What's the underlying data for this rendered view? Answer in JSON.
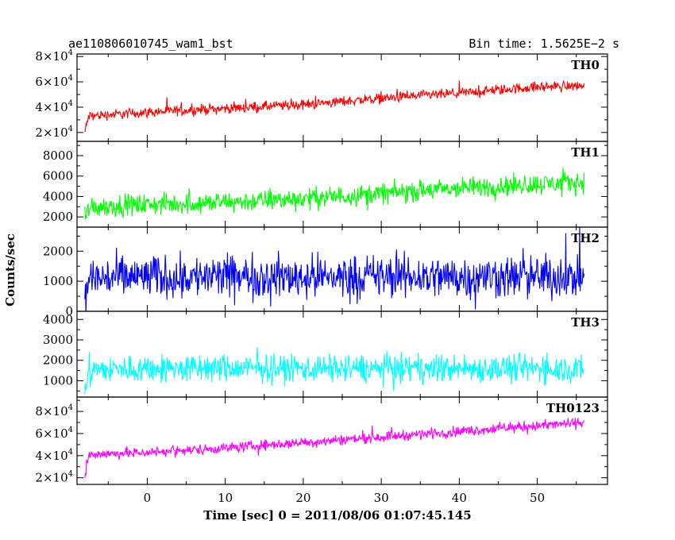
{
  "header": {
    "left_title": "ae110806010745_wam1_bst",
    "right_title": "Bin time: 1.5625E−2 s"
  },
  "axes": {
    "xlabel": "Time [sec] 0 = 2011/08/06 01:07:45.145",
    "ylabel": "Counts/sec"
  },
  "chart_data": {
    "type": "line",
    "xlim": [
      -9,
      59
    ],
    "x_ticks": [
      0,
      10,
      20,
      30,
      40,
      50
    ],
    "x_tick_labels": [
      "0",
      "10",
      "20",
      "30",
      "40",
      "50"
    ],
    "data_x_range": [
      -8,
      56
    ],
    "series": [
      {
        "name": "TH0",
        "color": "#ff0000",
        "ylim": [
          13000,
          82000
        ],
        "y_ticks": [
          20000,
          40000,
          60000,
          80000
        ],
        "y_tick_labels": [
          [
            "2×10",
            "4"
          ],
          [
            "4×10",
            "4"
          ],
          [
            "6×10",
            "4"
          ],
          [
            "8×10",
            "4"
          ]
        ],
        "baseline": [
          [
            -8,
            20000
          ],
          [
            -7.5,
            33000
          ],
          [
            0,
            36000
          ],
          [
            10,
            39000
          ],
          [
            20,
            42000
          ],
          [
            30,
            47000
          ],
          [
            40,
            51000
          ],
          [
            50,
            56000
          ],
          [
            56,
            57000
          ]
        ],
        "spread": 6000
      },
      {
        "name": "TH1",
        "color": "#00ff00",
        "ylim": [
          1000,
          9400
        ],
        "y_ticks": [
          2000,
          4000,
          6000,
          8000
        ],
        "y_tick_labels": [
          [
            "2000"
          ],
          [
            "4000"
          ],
          [
            "6000"
          ],
          [
            "8000"
          ]
        ],
        "baseline": [
          [
            -8,
            1500
          ],
          [
            -7.5,
            3000
          ],
          [
            0,
            3200
          ],
          [
            10,
            3400
          ],
          [
            20,
            3800
          ],
          [
            30,
            4300
          ],
          [
            40,
            4800
          ],
          [
            50,
            5200
          ],
          [
            56,
            5400
          ]
        ],
        "spread": 1500
      },
      {
        "name": "TH2",
        "color": "#0000ff",
        "ylim": [
          0,
          2800
        ],
        "y_ticks": [
          0,
          1000,
          2000
        ],
        "y_tick_labels": [
          [
            "0"
          ],
          [
            "1000"
          ],
          [
            "2000"
          ]
        ],
        "baseline": [
          [
            -8,
            300
          ],
          [
            -7.5,
            1100
          ],
          [
            0,
            1150
          ],
          [
            20,
            1150
          ],
          [
            40,
            1150
          ],
          [
            56,
            1150
          ]
        ],
        "spread": 1050
      },
      {
        "name": "TH3",
        "color": "#00ffff",
        "ylim": [
          200,
          4400
        ],
        "y_ticks": [
          1000,
          2000,
          3000,
          4000
        ],
        "y_tick_labels": [
          [
            "1000"
          ],
          [
            "2000"
          ],
          [
            "3000"
          ],
          [
            "4000"
          ]
        ],
        "baseline": [
          [
            -8,
            600
          ],
          [
            -7.5,
            1500
          ],
          [
            0,
            1600
          ],
          [
            20,
            1600
          ],
          [
            40,
            1600
          ],
          [
            56,
            1600
          ]
        ],
        "spread": 1000
      },
      {
        "name": "TH0123",
        "color": "#ff00ff",
        "ylim": [
          14000,
          93000
        ],
        "y_ticks": [
          20000,
          40000,
          60000,
          80000
        ],
        "y_tick_labels": [
          [
            "2×10",
            "4"
          ],
          [
            "4×10",
            "4"
          ],
          [
            "6×10",
            "4"
          ],
          [
            "8×10",
            "4"
          ]
        ],
        "baseline": [
          [
            -8,
            20000
          ],
          [
            -7.5,
            41000
          ],
          [
            0,
            43000
          ],
          [
            10,
            47000
          ],
          [
            20,
            52000
          ],
          [
            30,
            57000
          ],
          [
            40,
            62000
          ],
          [
            50,
            67000
          ],
          [
            56,
            70000
          ]
        ],
        "spread": 7000
      }
    ]
  }
}
